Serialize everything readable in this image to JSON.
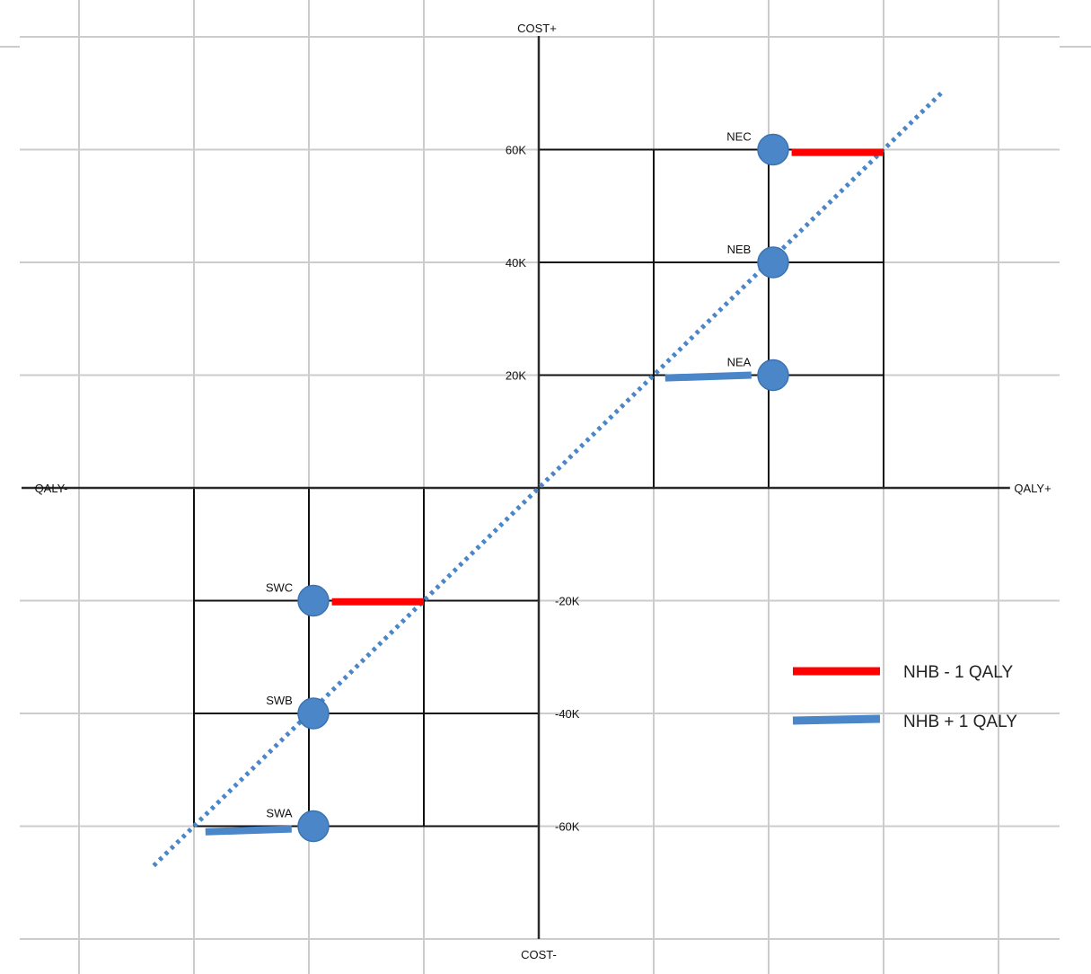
{
  "chart_data": {
    "type": "scatter",
    "x_unit": "QALY",
    "y_unit": "COST",
    "axis_labels": {
      "x_positive": "QALY+",
      "x_negative": "QALY-",
      "y_positive": "COST+",
      "y_negative": "COST-"
    },
    "y_ticks": [
      {
        "value": 60000,
        "label": "60K"
      },
      {
        "value": 40000,
        "label": "40K"
      },
      {
        "value": 20000,
        "label": "20K"
      },
      {
        "value": -20000,
        "label": "-20K"
      },
      {
        "value": -40000,
        "label": "-40K"
      },
      {
        "value": -60000,
        "label": "-60K"
      }
    ],
    "xlim": [
      -4.1,
      4.5
    ],
    "ylim": [
      -80000,
      80000
    ],
    "grid": true,
    "threshold_line": {
      "slope_per_qaly": 20000,
      "style": "dotted",
      "color": "#4a86c8",
      "x_range": [
        -3.35,
        3.5
      ]
    },
    "points": [
      {
        "label": "NEC",
        "x": 2,
        "y": 60000
      },
      {
        "label": "NEB",
        "x": 2,
        "y": 40000
      },
      {
        "label": "NEA",
        "x": 2,
        "y": 20000
      },
      {
        "label": "SWC",
        "x": -2,
        "y": -20000
      },
      {
        "label": "SWB",
        "x": -2,
        "y": -40000
      },
      {
        "label": "SWA",
        "x": -2,
        "y": -60000
      }
    ],
    "segments": [
      {
        "series": "NHB - 1 QALY",
        "from": [
          2.2,
          59500
        ],
        "to": [
          3,
          59500
        ]
      },
      {
        "series": "NHB + 1 QALY",
        "from": [
          1.1,
          19500
        ],
        "to": [
          1.85,
          20000
        ]
      },
      {
        "series": "NHB - 1 QALY",
        "from": [
          -1.8,
          -20200
        ],
        "to": [
          -1.0,
          -20200
        ]
      },
      {
        "series": "NHB + 1 QALY",
        "from": [
          -2.9,
          -61000
        ],
        "to": [
          -2.15,
          -60500
        ]
      }
    ],
    "legend": {
      "placement": "right",
      "entries": [
        {
          "name": "NHB - 1 QALY",
          "color": "#ff0000"
        },
        {
          "name": "NHB + 1 QALY",
          "color": "#4a86c8"
        }
      ]
    },
    "colors": {
      "point": "#4a86c8",
      "point_stroke": "#3a73b2",
      "axis": "#2a2a2a",
      "grid": "#cccccc",
      "box": "#111111"
    }
  }
}
